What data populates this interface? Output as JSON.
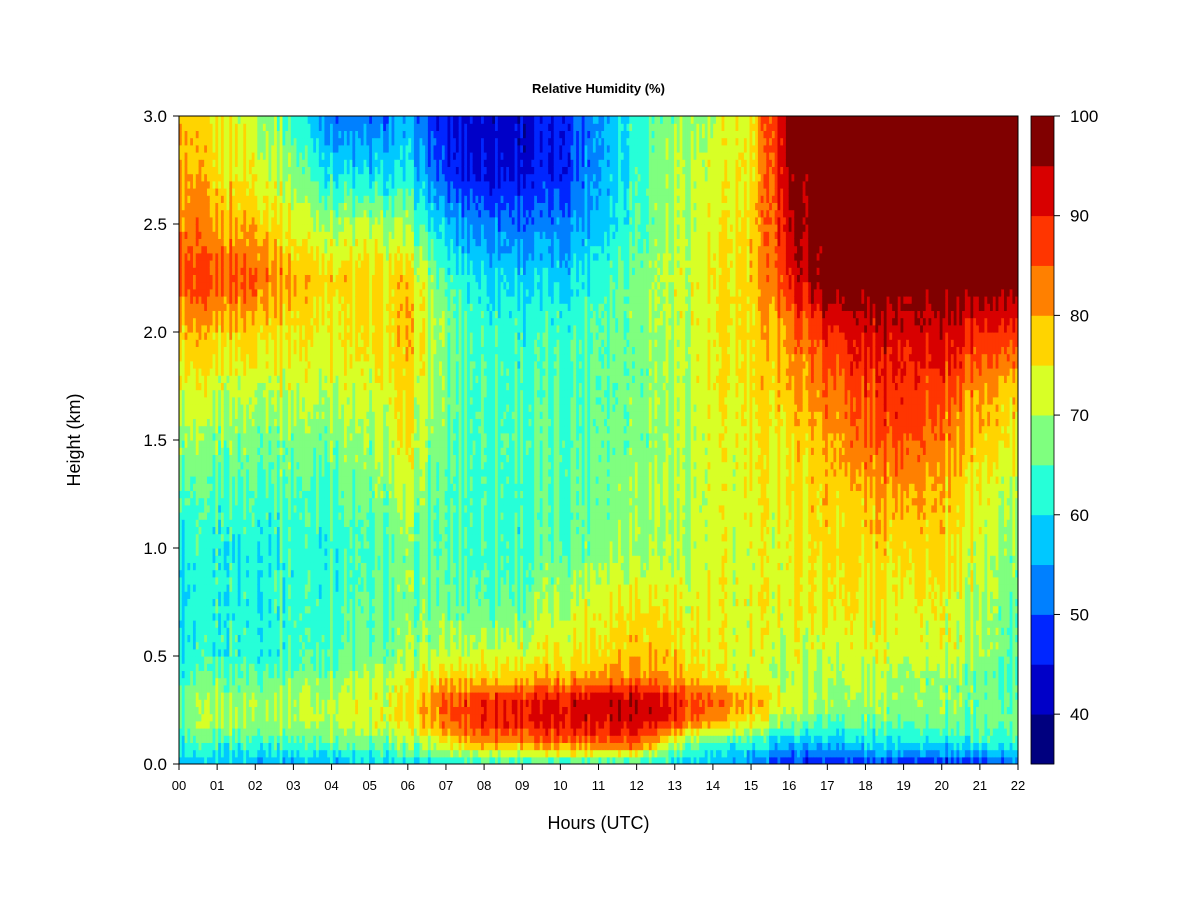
{
  "chart_data": {
    "type": "heatmap",
    "title": "Relative Humidity (%)",
    "xlabel": "Hours (UTC)",
    "ylabel": "Height (km)",
    "xlim": [
      0,
      22
    ],
    "ylim": [
      0,
      3.0
    ],
    "x_ticks": [
      "00",
      "01",
      "02",
      "03",
      "04",
      "05",
      "06",
      "07",
      "08",
      "09",
      "10",
      "11",
      "12",
      "13",
      "14",
      "15",
      "16",
      "17",
      "18",
      "19",
      "20",
      "21",
      "22"
    ],
    "y_ticks": [
      "0.0",
      "0.5",
      "1.0",
      "1.5",
      "2.0",
      "2.5",
      "3.0"
    ],
    "y_tick_values": [
      0,
      0.5,
      1.0,
      1.5,
      2.0,
      2.5,
      3.0
    ],
    "colorbar": {
      "min": 35,
      "max": 100,
      "levels": [
        35,
        40,
        45,
        50,
        55,
        60,
        65,
        70,
        75,
        80,
        85,
        90,
        95,
        100
      ],
      "colors": [
        "#00007f",
        "#0000c8",
        "#0026ff",
        "#0080ff",
        "#00c8ff",
        "#26ffd8",
        "#7fff7f",
        "#d8ff26",
        "#ffd400",
        "#ff8000",
        "#ff3500",
        "#d80000",
        "#800000"
      ],
      "tick_labels": [
        "40",
        "50",
        "60",
        "70",
        "80",
        "90",
        "100"
      ],
      "tick_values": [
        40,
        50,
        60,
        70,
        80,
        90,
        100
      ]
    },
    "heights": [
      0.0,
      0.1,
      0.2,
      0.3,
      0.4,
      0.5,
      0.75,
      1.0,
      1.25,
      1.5,
      1.75,
      2.0,
      2.25,
      2.5,
      2.75,
      3.0
    ],
    "hours": [
      0,
      1,
      2,
      3,
      4,
      5,
      6,
      7,
      8,
      9,
      10,
      11,
      12,
      13,
      14,
      15,
      16,
      17,
      18,
      19,
      20,
      21,
      22
    ],
    "values": [
      [
        56,
        56,
        57,
        56,
        57,
        58,
        60,
        60,
        62,
        62,
        62,
        62,
        62,
        60,
        56,
        52,
        48,
        46,
        48,
        48,
        45,
        47,
        52
      ],
      [
        62,
        64,
        64,
        64,
        66,
        66,
        68,
        75,
        82,
        82,
        84,
        86,
        88,
        70,
        63,
        62,
        57,
        57,
        60,
        62,
        60,
        62,
        64
      ],
      [
        66,
        70,
        70,
        70,
        72,
        72,
        74,
        84,
        90,
        91,
        92,
        93,
        95,
        90,
        80,
        75,
        68,
        65,
        66,
        67,
        66,
        66,
        67
      ],
      [
        64,
        70,
        70,
        70,
        72,
        72,
        75,
        85,
        89,
        90,
        91,
        94,
        95,
        90,
        85,
        80,
        74,
        70,
        70,
        70,
        68,
        67,
        66
      ],
      [
        62,
        66,
        66,
        67,
        68,
        70,
        72,
        77,
        78,
        78,
        80,
        82,
        84,
        80,
        75,
        72,
        70,
        70,
        70,
        70,
        68,
        66,
        64
      ],
      [
        60,
        63,
        63,
        64,
        66,
        66,
        68,
        71,
        73,
        73,
        74,
        77,
        80,
        78,
        73,
        72,
        72,
        72,
        72,
        73,
        72,
        70,
        65
      ],
      [
        58,
        62,
        62,
        63,
        64,
        64,
        67,
        66,
        66,
        66,
        70,
        74,
        76,
        74,
        73,
        73,
        74,
        76,
        74,
        75,
        73,
        70,
        66
      ],
      [
        60,
        62,
        62,
        63,
        63,
        63,
        67,
        64,
        64,
        64,
        65,
        68,
        70,
        70,
        72,
        72,
        74,
        77,
        76,
        78,
        76,
        72,
        68
      ],
      [
        63,
        64,
        65,
        65,
        65,
        66,
        70,
        64,
        64,
        64,
        65,
        67,
        70,
        70,
        72,
        73,
        75,
        78,
        78,
        82,
        78,
        74,
        70
      ],
      [
        68,
        67,
        68,
        68,
        68,
        68,
        74,
        65,
        65,
        65,
        65,
        67,
        68,
        70,
        72,
        74,
        76,
        80,
        84,
        88,
        82,
        78,
        74
      ],
      [
        72,
        72,
        72,
        72,
        72,
        72,
        76,
        66,
        65,
        64,
        64,
        66,
        68,
        70,
        74,
        75,
        80,
        84,
        87,
        90,
        86,
        82,
        78
      ],
      [
        78,
        78,
        78,
        76,
        75,
        75,
        78,
        67,
        64,
        63,
        63,
        66,
        68,
        71,
        74,
        76,
        82,
        90,
        92,
        94,
        92,
        90,
        88
      ],
      [
        86,
        86,
        86,
        80,
        77,
        76,
        77,
        64,
        60,
        59,
        58,
        64,
        68,
        72,
        74,
        77,
        90,
        100,
        100,
        100,
        100,
        100,
        100
      ],
      [
        82,
        80,
        80,
        74,
        70,
        70,
        68,
        56,
        53,
        52,
        52,
        58,
        65,
        70,
        73,
        76,
        94,
        100,
        100,
        100,
        100,
        100,
        100
      ],
      [
        80,
        76,
        74,
        68,
        60,
        58,
        60,
        47,
        45,
        44,
        46,
        55,
        64,
        70,
        72,
        75,
        97,
        100,
        100,
        100,
        100,
        100,
        100
      ],
      [
        78,
        74,
        72,
        64,
        52,
        50,
        56,
        44,
        43,
        43,
        46,
        56,
        64,
        68,
        70,
        74,
        99,
        100,
        100,
        100,
        100,
        100,
        100
      ]
    ]
  }
}
